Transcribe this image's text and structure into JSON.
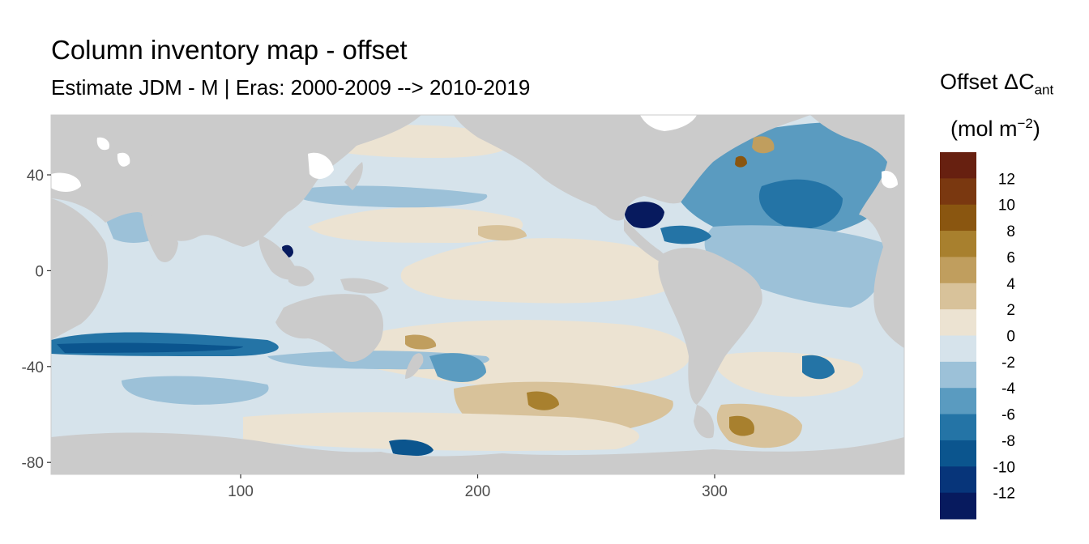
{
  "title": "Column inventory map - offset",
  "subtitle": "Estimate JDM - M | Eras: 2000-2009 --> 2010-2019",
  "legend": {
    "title_main": "Offset ΔC",
    "title_sub": "ant",
    "unit_main": "(mol m",
    "unit_sup": "−2",
    "unit_close": ")"
  },
  "colors": {
    "land": "#cbcbcb",
    "panel_border": "#4d4d4d"
  },
  "chart_data": {
    "type": "heatmap",
    "title": "Column inventory map - offset",
    "subtitle": "Estimate JDM - M | Eras: 2000-2009 --> 2010-2019",
    "xlabel": "",
    "ylabel": "",
    "xlim": [
      20,
      380
    ],
    "ylim": [
      -85,
      65
    ],
    "x_ticks": [
      100,
      200,
      300
    ],
    "y_ticks": [
      40,
      0,
      -40,
      -80
    ],
    "grid": false,
    "legend_position": "right",
    "colorbar": {
      "bins": [
        {
          "color": "#672010",
          "label": ""
        },
        {
          "color": "#7a3810",
          "label": "12"
        },
        {
          "color": "#8a5610",
          "label": "10"
        },
        {
          "color": "#a8802e",
          "label": "8"
        },
        {
          "color": "#c09e5e",
          "label": "6"
        },
        {
          "color": "#d8c29a",
          "label": "4"
        },
        {
          "color": "#ece3d2",
          "label": "2"
        },
        {
          "color": "#d6e3eb",
          "label": "0"
        },
        {
          "color": "#9cc1d8",
          "label": "-2"
        },
        {
          "color": "#5a9bc0",
          "label": "-4"
        },
        {
          "color": "#2474a6",
          "label": "-6"
        },
        {
          "color": "#0b558e",
          "label": "-8"
        },
        {
          "color": "#07357a",
          "label": "-10"
        },
        {
          "color": "#071a5e",
          "label": "-12"
        }
      ]
    }
  }
}
